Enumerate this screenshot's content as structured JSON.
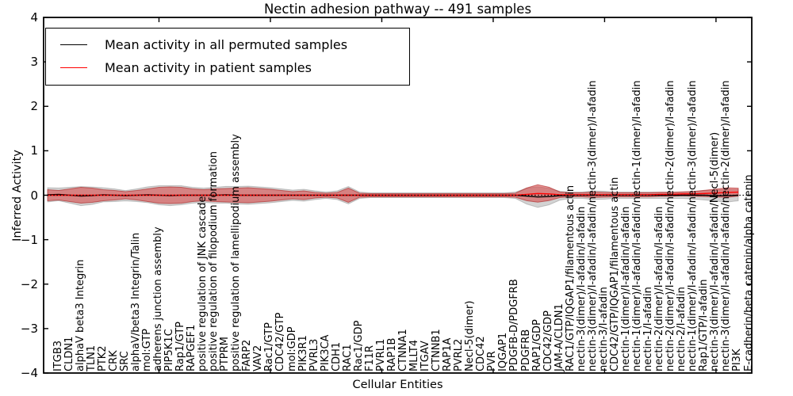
{
  "colors": {
    "permuted_line": "#000000",
    "patient_line": "#ff0000",
    "patient_band": "#d94040",
    "permuted_band": "#6e6e6e",
    "axes": "#000000",
    "background": "#ffffff"
  },
  "chart_data": {
    "type": "area",
    "title": "Nectin adhesion pathway -- 491 samples",
    "xlabel": "Cellular Entities",
    "ylabel": "Inferred Activity",
    "ylim": [
      -4,
      4
    ],
    "yticks": [
      4,
      3,
      2,
      1,
      0,
      -1,
      -2,
      -3,
      -4
    ],
    "ytick_labels": [
      "4",
      "3",
      "2",
      "1",
      "0",
      "−1",
      "−2",
      "−3",
      "−4"
    ],
    "x_major_tick_every": 10,
    "grid": false,
    "legend_position": "upper left",
    "zero_line": {
      "y": 0,
      "style": "dotted",
      "color": "#000000"
    },
    "categories": [
      "ITGB3",
      "CLDN1",
      "alphaV beta3 Integrin",
      "TLN1",
      "PTK2",
      "CRK",
      "SRC",
      "alphaV/beta3 Integrin/Talin",
      "mol:GTP",
      "adherens junction assembly",
      "PIP5K1C",
      "Rap1/GTP",
      "RAPGEF1",
      "positive regulation of JNK cascade",
      "positive regulation of filopodium formation",
      "PTPRM",
      "positive regulation of lamellipodium assembly",
      "FARP2",
      "VAV2",
      "Rac1/GTP",
      "CDC42/GTP",
      "mol:GDP",
      "PIK3R1",
      "PVRL3",
      "PIK3CA",
      "CDH1",
      "RAC1",
      "Rac1/GDP",
      "F11R",
      "PVRL1",
      "RAP1B",
      "CTNNA1",
      "MLLT4",
      "ITGAV",
      "CTNNB1",
      "RAP1A",
      "PVRL2",
      "Necl-5(dimer)",
      "CDC42",
      "PVR",
      "IQGAP1",
      "PDGFB-D/PDGFRB",
      "PDGFRB",
      "RAP1/GDP",
      "CDC42/GDP",
      "JAM-A/CLDN1",
      "RAC1/GTP/IQGAP1/filamentous actin",
      "nectin-3(dimer)/I-afadin/I-afadin",
      "nectin-3(dimer)/I-afadin/I-afadin/nectin-3(dimer)/I-afadin",
      "nectin-3/I-afadin",
      "CDC42/GTP/IQGAP1/filamentous actin",
      "nectin-1(dimer)/I-afadin/I-afadin",
      "nectin-1(dimer)/I-afadin/I-afadin/nectin-1(dimer)/I-afadin",
      "nectin-1/I-afadin",
      "nectin-2(dimer)/I-afadin/I-afadin",
      "nectin-2(dimer)/I-afadin/I-afadin/nectin-2(dimer)/I-afadin",
      "nectin-2/I-afadin",
      "nectin-1(dimer)/I-afadin/I-afadin/nectin-3(dimer)/I-afadin",
      "Rap1/GTP/I-afadin",
      "nectin-3(dimer)/I-afadin/I-afadin/Necl-5(dimer)",
      "nectin-3(dimer)/I-afadin/I-afadin/nectin-2(dimer)/I-afadin",
      "PI3K",
      "E-cadherin/beta catenin/alpha catenin"
    ],
    "series": [
      {
        "name": "Mean activity in all permuted samples",
        "color": "#000000",
        "band_color": "#6e6e6e",
        "band_opacity": 0.3,
        "mean": [
          0.01,
          0.02,
          0,
          -0.02,
          -0.01,
          0.01,
          0,
          -0.01,
          0,
          0.01,
          0,
          -0.01,
          0,
          0,
          0,
          0,
          0.01,
          0,
          0,
          0,
          0,
          0,
          0,
          0,
          0,
          0,
          0,
          0,
          0,
          0,
          0,
          0,
          0,
          0,
          0,
          0,
          0,
          0,
          0,
          0,
          0,
          0,
          0,
          -0.02,
          -0.04,
          -0.03,
          -0.01,
          0,
          0,
          0,
          0,
          0,
          0,
          0,
          0,
          0,
          0,
          0,
          0,
          0,
          -0.01,
          -0.01,
          0
        ],
        "spread_halfwidth": [
          0.16,
          0.143,
          0.178,
          0.214,
          0.196,
          0.16,
          0.143,
          0.116,
          0.143,
          0.178,
          0.214,
          0.223,
          0.214,
          0.178,
          0.16,
          0.178,
          0.187,
          0.196,
          0.205,
          0.187,
          0.169,
          0.143,
          0.116,
          0.134,
          0.098,
          0.071,
          0.098,
          0.196,
          0.071,
          0.053,
          0.053,
          0.053,
          0.053,
          0.053,
          0.053,
          0.053,
          0.053,
          0.053,
          0.053,
          0.053,
          0.053,
          0.053,
          0.071,
          0.178,
          0.232,
          0.187,
          0.098,
          0.071,
          0.071,
          0.098,
          0.089,
          0.071,
          0.071,
          0.071,
          0.071,
          0.071,
          0.071,
          0.071,
          0.089,
          0.107,
          0.125,
          0.143,
          0.125
        ]
      },
      {
        "name": "Mean activity in patient samples",
        "color": "#ff0000",
        "band_color": "#d94040",
        "band_opacity": 0.55,
        "mean": [
          0,
          0,
          0,
          0,
          0,
          0,
          0,
          0,
          0,
          0,
          0,
          0,
          0,
          0,
          0,
          0,
          0,
          0,
          0,
          0,
          0,
          0,
          0,
          0,
          0,
          0,
          0,
          0,
          0,
          0,
          0,
          0,
          0,
          0,
          0,
          0,
          0,
          0,
          0,
          0,
          0,
          0,
          0,
          0.02,
          0.04,
          0.03,
          0.01,
          0.01,
          0.01,
          0.01,
          0.01,
          0.01,
          0.01,
          0.01,
          0.01,
          0.02,
          0.02,
          0.03,
          0.03,
          0.04,
          0.05,
          0.06,
          0.07
        ],
        "spread_halfwidth": [
          0.125,
          0.107,
          0.143,
          0.178,
          0.16,
          0.125,
          0.107,
          0.08,
          0.107,
          0.143,
          0.178,
          0.187,
          0.178,
          0.143,
          0.125,
          0.143,
          0.152,
          0.16,
          0.169,
          0.152,
          0.134,
          0.107,
          0.08,
          0.098,
          0.062,
          0.045,
          0.062,
          0.16,
          0.045,
          0.036,
          0.036,
          0.036,
          0.036,
          0.036,
          0.036,
          0.036,
          0.036,
          0.036,
          0.036,
          0.036,
          0.036,
          0.036,
          0.045,
          0.143,
          0.196,
          0.152,
          0.062,
          0.045,
          0.045,
          0.062,
          0.053,
          0.045,
          0.045,
          0.045,
          0.045,
          0.045,
          0.045,
          0.045,
          0.053,
          0.071,
          0.089,
          0.107,
          0.089
        ]
      }
    ]
  }
}
